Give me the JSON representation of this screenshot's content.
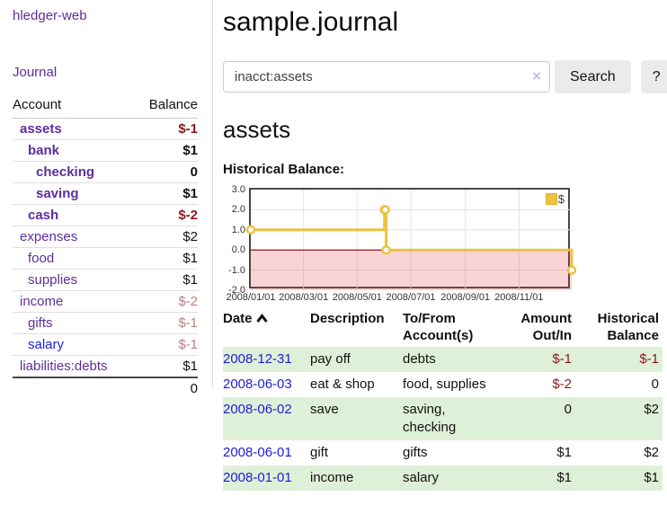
{
  "app": {
    "title": "hledger-web"
  },
  "sidebar": {
    "journal_link": "Journal",
    "account_header": "Account",
    "balance_header": "Balance",
    "rows": [
      {
        "name": "assets",
        "balance": "$-1",
        "level": 1,
        "bold": true,
        "neg": "strong"
      },
      {
        "name": "bank",
        "balance": "$1",
        "level": 2,
        "bold": true,
        "neg": "none"
      },
      {
        "name": "checking",
        "balance": "0",
        "level": 3,
        "bold": true,
        "neg": "none"
      },
      {
        "name": "saving",
        "balance": "$1",
        "level": 3,
        "bold": true,
        "neg": "none"
      },
      {
        "name": "cash",
        "balance": "$-2",
        "level": 2,
        "bold": true,
        "neg": "strong"
      },
      {
        "name": "expenses",
        "balance": "$2",
        "level": 1,
        "bold": false,
        "neg": "none"
      },
      {
        "name": "food",
        "balance": "$1",
        "level": 2,
        "bold": false,
        "neg": "none"
      },
      {
        "name": "supplies",
        "balance": "$1",
        "level": 2,
        "bold": false,
        "neg": "none"
      },
      {
        "name": "income",
        "balance": "$-2",
        "level": 1,
        "bold": false,
        "neg": "weak"
      },
      {
        "name": "gifts",
        "balance": "$-1",
        "level": 2,
        "bold": false,
        "neg": "weak"
      },
      {
        "name": "salary",
        "balance": "$-1",
        "level": 2,
        "bold": false,
        "neg": "weak",
        "link": "blue"
      },
      {
        "name": "liabilities:debts",
        "balance": "$1",
        "level": 1,
        "bold": false,
        "neg": "none"
      }
    ],
    "total": "0"
  },
  "header": {
    "journal_title": "sample.journal"
  },
  "search": {
    "value": "inacct:assets",
    "clear_icon": "×",
    "button_label": "Search",
    "help_label": "?"
  },
  "account_page": {
    "title": "assets",
    "chart_label": "Historical Balance:"
  },
  "chart_data": {
    "type": "line",
    "title": "Historical Balance:",
    "step": true,
    "series": [
      {
        "name": "$",
        "color": "#edc240",
        "points": [
          [
            "2008-01-01",
            1
          ],
          [
            "2008-06-01",
            2
          ],
          [
            "2008-06-02",
            2
          ],
          [
            "2008-06-03",
            0
          ],
          [
            "2008-12-31",
            -1
          ]
        ]
      }
    ],
    "x_range": [
      "2008-01-01",
      "2008-12-31"
    ],
    "x_ticks": [
      "2008/01/01",
      "2008/03/01",
      "2008/05/01",
      "2008/07/01",
      "2008/09/01",
      "2008/11/01"
    ],
    "y_ticks": [
      "3.0",
      "2.0",
      "1.0",
      "0.0",
      "-1.0",
      "-2.0"
    ],
    "ylim": [
      -2,
      3
    ],
    "grid": true,
    "negative_region_color": "#fadbdb",
    "zero_line_color": "#990000",
    "legend": {
      "label": "$",
      "position": "top-right"
    }
  },
  "register": {
    "columns": [
      {
        "label": "Date",
        "sort": "ascending"
      },
      {
        "label": "Description"
      },
      {
        "label": "To/From Account(s)"
      },
      {
        "label": "Amount Out/In"
      },
      {
        "label": "Historical Balance"
      }
    ],
    "rows": [
      {
        "date": "2008-12-31",
        "description": "pay off",
        "accounts": "debts",
        "amount": "$-1",
        "balance": "$-1",
        "amount_neg": true,
        "balance_neg": true,
        "highlight": true
      },
      {
        "date": "2008-06-03",
        "description": "eat & shop",
        "accounts": "food, supplies",
        "amount": "$-2",
        "balance": "0",
        "amount_neg": true,
        "balance_neg": false,
        "highlight": false
      },
      {
        "date": "2008-06-02",
        "description": "save",
        "accounts": "saving, checking",
        "amount": "0",
        "balance": "$2",
        "amount_neg": false,
        "balance_neg": false,
        "highlight": true
      },
      {
        "date": "2008-06-01",
        "description": "gift",
        "accounts": "gifts",
        "amount": "$1",
        "balance": "$2",
        "amount_neg": false,
        "balance_neg": false,
        "highlight": false
      },
      {
        "date": "2008-01-01",
        "description": "income",
        "accounts": "salary",
        "amount": "$1",
        "balance": "$1",
        "amount_neg": false,
        "balance_neg": false,
        "highlight": true
      }
    ]
  }
}
